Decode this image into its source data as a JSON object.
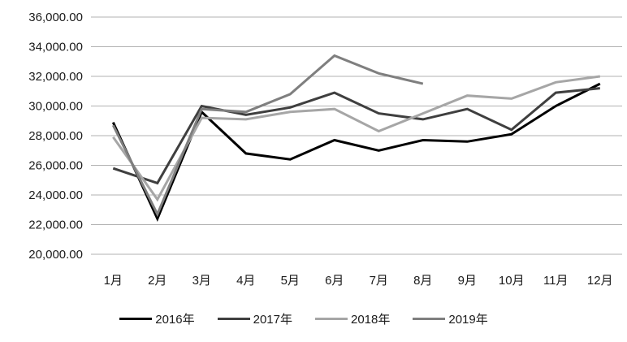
{
  "chart_data": {
    "type": "line",
    "title": "",
    "xlabel": "",
    "ylabel": "",
    "grid": true,
    "legend_position": "bottom",
    "categories": [
      "1月",
      "2月",
      "3月",
      "4月",
      "5月",
      "6月",
      "7月",
      "8月",
      "9月",
      "10月",
      "11月",
      "12月"
    ],
    "y_axis": {
      "min": 20000,
      "max": 36000,
      "step": 2000,
      "tick_labels_top_to_bottom": [
        "36,000.00",
        "34,000.00",
        "32,000.00",
        "30,000.00",
        "28,000.00",
        "26,000.00",
        "24,000.00",
        "22,000.00",
        "20,000.00"
      ]
    },
    "series": [
      {
        "name": "2016年",
        "color": "#000000",
        "values": [
          28900,
          22400,
          29600,
          26800,
          26400,
          27700,
          27000,
          27700,
          27600,
          28100,
          30000,
          31500
        ]
      },
      {
        "name": "2017年",
        "color": "#3f3f3f",
        "values": [
          25800,
          24800,
          30000,
          29400,
          29900,
          30900,
          29500,
          29100,
          29800,
          28400,
          30900,
          31200
        ]
      },
      {
        "name": "2018年",
        "color": "#a6a6a6",
        "values": [
          27900,
          23700,
          29200,
          29100,
          29600,
          29800,
          28300,
          29500,
          30700,
          30500,
          31600,
          32000
        ]
      },
      {
        "name": "2019年",
        "color": "#7f7f7f",
        "values": [
          28700,
          22700,
          29800,
          29600,
          30800,
          33400,
          32200,
          31500,
          null,
          null,
          null,
          null
        ]
      }
    ],
    "gridline_color": "#b2b2b2",
    "line_width": 3
  },
  "legend": {
    "items": [
      {
        "label": "2016年",
        "color": "#000000"
      },
      {
        "label": "2017年",
        "color": "#3f3f3f"
      },
      {
        "label": "2018年",
        "color": "#a6a6a6"
      },
      {
        "label": "2019年",
        "color": "#7f7f7f"
      }
    ]
  }
}
